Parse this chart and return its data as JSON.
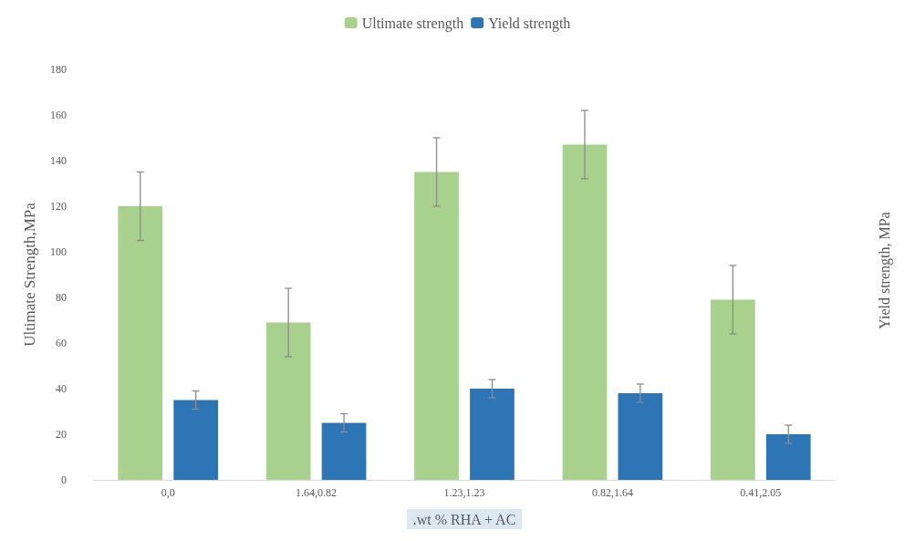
{
  "chart_data": {
    "type": "bar",
    "xlabel": ".wt % RHA + AC",
    "ylabel": "Ultimate Strength,MPa",
    "y2label": "Yield strength, MPa",
    "categories": [
      "0,0",
      "1.64,0.82",
      "1.23,1.23",
      "0.82,1.64",
      "0.41,2.05"
    ],
    "series": [
      {
        "name": "Ultimate strength",
        "color": "#a9d18e",
        "values": [
          120,
          69,
          135,
          147,
          79
        ],
        "errors": [
          15,
          15,
          15,
          15,
          15
        ]
      },
      {
        "name": "Yield strength",
        "color": "#2e75b6",
        "values": [
          35,
          25,
          40,
          38,
          20
        ],
        "errors": [
          4,
          4,
          4,
          4,
          4
        ]
      }
    ],
    "ylim": [
      0,
      180
    ],
    "yticks": [
      0,
      20,
      40,
      60,
      80,
      100,
      120,
      140,
      160,
      180
    ],
    "grid": false,
    "legend": "top"
  }
}
